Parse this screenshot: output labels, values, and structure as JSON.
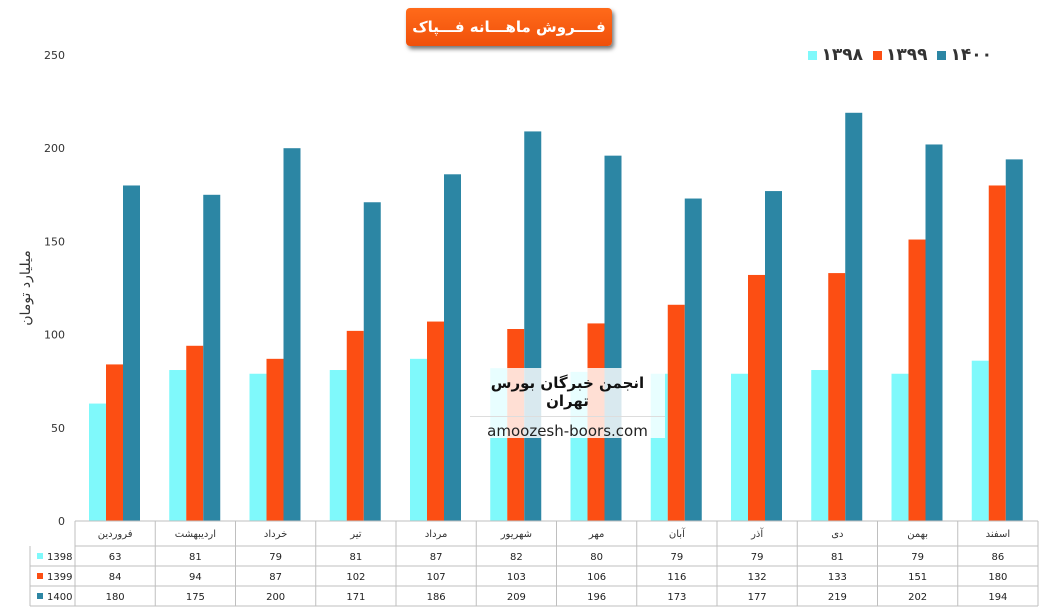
{
  "title": "فــــروش ماهـــانه فـــپاک",
  "watermark": {
    "title": "انجمن خبرگان بورس تهران",
    "url": "amoozesh-boors.com"
  },
  "colors": {
    "1398": "#7ff9fb",
    "1399": "#fc4e13",
    "1400": "#2c86a4"
  },
  "chart_data": {
    "type": "bar",
    "ylabel": "میلیارد تومان",
    "ylim": [
      0,
      250
    ],
    "yticks": [
      0,
      50,
      100,
      150,
      200,
      250
    ],
    "grid": false,
    "legend_placement": "top-right",
    "legend": [
      {
        "label": "۱۴۰۰",
        "key": "1400"
      },
      {
        "label": "۱۳۹۹",
        "key": "1399"
      },
      {
        "label": "۱۳۹۸",
        "key": "1398"
      }
    ],
    "categories": [
      "فروردین",
      "اردیبهشت",
      "خرداد",
      "تیر",
      "مرداد",
      "شهریور",
      "مهر",
      "آبان",
      "آذر",
      "دی",
      "بهمن",
      "اسفند"
    ],
    "series": [
      {
        "name": "1398",
        "key": "1398",
        "values": [
          63,
          81,
          79,
          81,
          87,
          82,
          80,
          79,
          79,
          81,
          79,
          86
        ]
      },
      {
        "name": "1399",
        "key": "1399",
        "values": [
          84,
          94,
          87,
          102,
          107,
          103,
          106,
          116,
          132,
          133,
          151,
          180
        ]
      },
      {
        "name": "1400",
        "key": "1400",
        "values": [
          180,
          175,
          200,
          171,
          186,
          209,
          196,
          173,
          177,
          219,
          202,
          194
        ]
      }
    ]
  }
}
